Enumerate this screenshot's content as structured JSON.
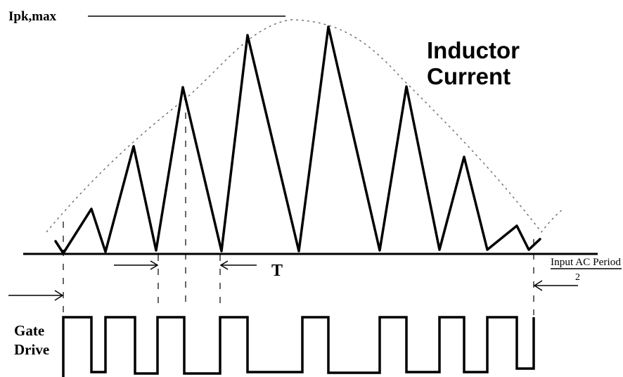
{
  "labels": {
    "ipk_max": "Ipk,max",
    "title_line1": "Inductor",
    "title_line2": "Current",
    "period_t": "T",
    "input_ac_period": "Input AC Period",
    "divisor": "2",
    "gate_line1": "Gate",
    "gate_line2": "Drive"
  },
  "colors": {
    "ink": "#000000",
    "envelope": "#555555"
  }
}
